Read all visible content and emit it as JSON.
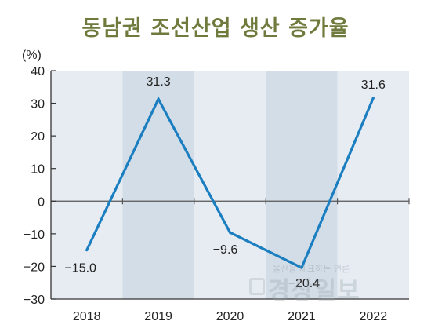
{
  "chart_data": {
    "type": "line",
    "title": "동남권 조선산업 생산 증가율",
    "unit_label": "(%)",
    "categories": [
      "2018",
      "2019",
      "2020",
      "2021",
      "2022"
    ],
    "values": [
      -15.0,
      31.3,
      -9.6,
      -20.4,
      31.6
    ],
    "value_labels": [
      "−15.0",
      "31.3",
      "−9.6",
      "−20.4",
      "31.6"
    ],
    "ylim": [
      -30,
      40
    ],
    "yticks": [
      40,
      30,
      20,
      10,
      0,
      -10,
      -20,
      -30
    ],
    "ytick_labels": [
      "40",
      "30",
      "20",
      "10",
      "0",
      "−10",
      "−20",
      "−30"
    ],
    "grid": false,
    "line_color": "#1a7ec0",
    "band_colors": [
      "#e6ecf2",
      "#d3dde7"
    ]
  },
  "watermark": {
    "text": "경상일보",
    "subtext": "울산을 대표하는 언론"
  }
}
